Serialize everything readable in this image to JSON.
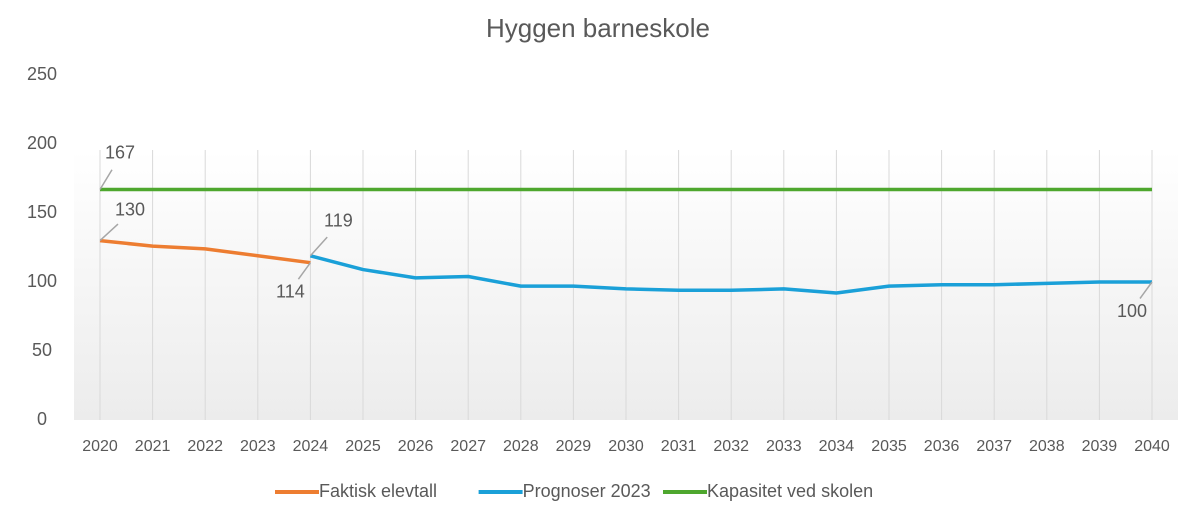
{
  "chart_data": {
    "type": "line",
    "title": "Hyggen barneskole",
    "categories": [
      "2020",
      "2021",
      "2022",
      "2023",
      "2024",
      "2025",
      "2026",
      "2027",
      "2028",
      "2029",
      "2030",
      "2031",
      "2032",
      "2033",
      "2034",
      "2035",
      "2036",
      "2037",
      "2038",
      "2039",
      "2040"
    ],
    "series": [
      {
        "name": "Faktisk elevtall",
        "color": "#ed7d31",
        "values": [
          130,
          126,
          124,
          119,
          114,
          null,
          null,
          null,
          null,
          null,
          null,
          null,
          null,
          null,
          null,
          null,
          null,
          null,
          null,
          null,
          null
        ]
      },
      {
        "name": "Prognoser 2023",
        "color": "#1aa0d8",
        "values": [
          null,
          null,
          null,
          null,
          119,
          109,
          103,
          104,
          97,
          97,
          95,
          94,
          94,
          95,
          92,
          97,
          98,
          98,
          99,
          100,
          100
        ]
      },
      {
        "name": "Kapasitet ved skolen",
        "color": "#4ea72e",
        "values": [
          167,
          167,
          167,
          167,
          167,
          167,
          167,
          167,
          167,
          167,
          167,
          167,
          167,
          167,
          167,
          167,
          167,
          167,
          167,
          167,
          167
        ]
      }
    ],
    "ylim": [
      0,
      250
    ],
    "yticks": [
      0,
      50,
      100,
      150,
      200,
      250
    ],
    "grid": false,
    "legend": "bottom"
  }
}
